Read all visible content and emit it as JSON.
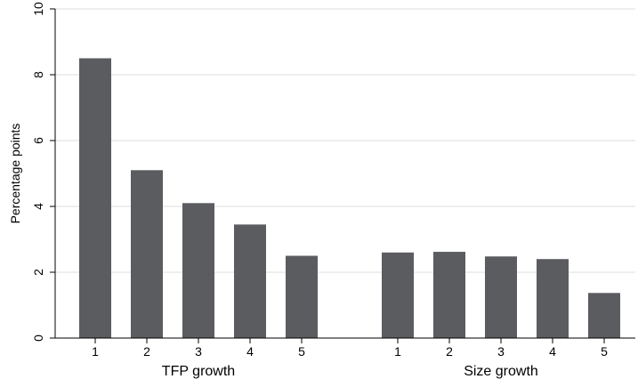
{
  "chart_data": {
    "type": "bar",
    "ylabel": "Percentage points",
    "ylim": [
      0,
      10
    ],
    "yticks": [
      0,
      2,
      4,
      6,
      8,
      10
    ],
    "grid": true,
    "bar_color": "#5b5c60",
    "grid_color": "#dcdcdc",
    "groups": [
      {
        "label": "TFP growth",
        "categories": [
          "1",
          "2",
          "3",
          "4",
          "5"
        ],
        "values": [
          8.5,
          5.1,
          4.1,
          3.45,
          2.5
        ]
      },
      {
        "label": "Size growth",
        "categories": [
          "1",
          "2",
          "3",
          "4",
          "5"
        ],
        "values": [
          2.6,
          2.62,
          2.48,
          2.4,
          1.37
        ]
      }
    ]
  }
}
